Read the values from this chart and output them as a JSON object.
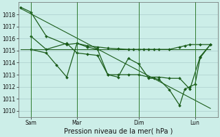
{
  "title": "Pression niveau de la mer( hPa )",
  "background_color": "#cceee8",
  "grid_color": "#aacccc",
  "line_color": "#1a5c1a",
  "yticks": [
    1010,
    1011,
    1012,
    1013,
    1014,
    1015,
    1016,
    1017,
    1018
  ],
  "ylim": [
    1009.5,
    1019.0
  ],
  "xlim": [
    -0.2,
    19.2
  ],
  "xtick_positions": [
    1.0,
    5.5,
    11.5,
    17.0
  ],
  "xtick_labels": [
    "Sam",
    "Mar",
    "Dim",
    "Lun"
  ],
  "series": [
    {
      "x": [
        0.0,
        1.0,
        2.5,
        4.5,
        5.5,
        6.5,
        7.5,
        8.5,
        9.5,
        10.5,
        11.0,
        11.5,
        12.0,
        12.5,
        13.0,
        13.5,
        14.5,
        15.5,
        16.0,
        16.5,
        17.5,
        18.5
      ],
      "y": [
        1018.6,
        1018.2,
        1016.2,
        1015.5,
        1015.6,
        1015.4,
        1015.3,
        1015.2,
        1015.15,
        1015.1,
        1015.1,
        1015.1,
        1015.1,
        1015.1,
        1015.1,
        1015.1,
        1015.1,
        1015.3,
        1015.4,
        1015.5,
        1015.5,
        1015.5
      ],
      "marker": "D",
      "markersize": 2.0,
      "linewidth": 0.9
    },
    {
      "x": [
        1.0,
        2.5,
        4.5,
        5.5,
        6.5,
        7.5,
        8.5,
        9.5,
        10.5,
        11.5,
        12.5,
        13.5,
        14.5,
        15.5,
        16.5,
        17.5,
        18.5
      ],
      "y": [
        1016.2,
        1015.1,
        1015.6,
        1014.8,
        1014.7,
        1014.6,
        1013.0,
        1013.0,
        1013.0,
        1013.0,
        1012.8,
        1012.8,
        1012.7,
        1012.7,
        1011.8,
        1014.5,
        1015.5
      ],
      "marker": "D",
      "markersize": 2.0,
      "linewidth": 0.9
    },
    {
      "x": [
        1.0,
        2.5,
        3.5,
        4.5,
        5.5,
        6.5,
        7.5,
        8.5,
        9.5,
        10.5,
        11.5,
        12.5,
        13.0,
        13.5,
        14.5,
        15.5,
        16.0,
        16.5,
        17.0,
        17.5,
        18.5
      ],
      "y": [
        1015.1,
        1014.8,
        1013.8,
        1012.8,
        1015.6,
        1015.3,
        1015.1,
        1013.0,
        1012.8,
        1014.35,
        1013.9,
        1012.7,
        1012.7,
        1012.6,
        1011.75,
        1010.45,
        1011.8,
        1012.0,
        1012.2,
        1014.4,
        1015.5
      ],
      "marker": "D",
      "markersize": 2.0,
      "linewidth": 0.9
    },
    {
      "x": [
        0.0,
        18.5
      ],
      "y": [
        1015.1,
        1015.1
      ],
      "marker": null,
      "markersize": 0,
      "linewidth": 0.8
    },
    {
      "x": [
        0.0,
        18.5
      ],
      "y": [
        1018.5,
        1010.2
      ],
      "marker": null,
      "markersize": 0,
      "linewidth": 0.8
    }
  ],
  "vline_positions": [
    1.0,
    5.5,
    11.5,
    17.0
  ],
  "vline_color": "#2d7a2d",
  "vline_linewidth": 0.7,
  "ylabel_fontsize": 5.5,
  "xlabel_fontsize": 7.0,
  "tick_fontsize": 5.5
}
